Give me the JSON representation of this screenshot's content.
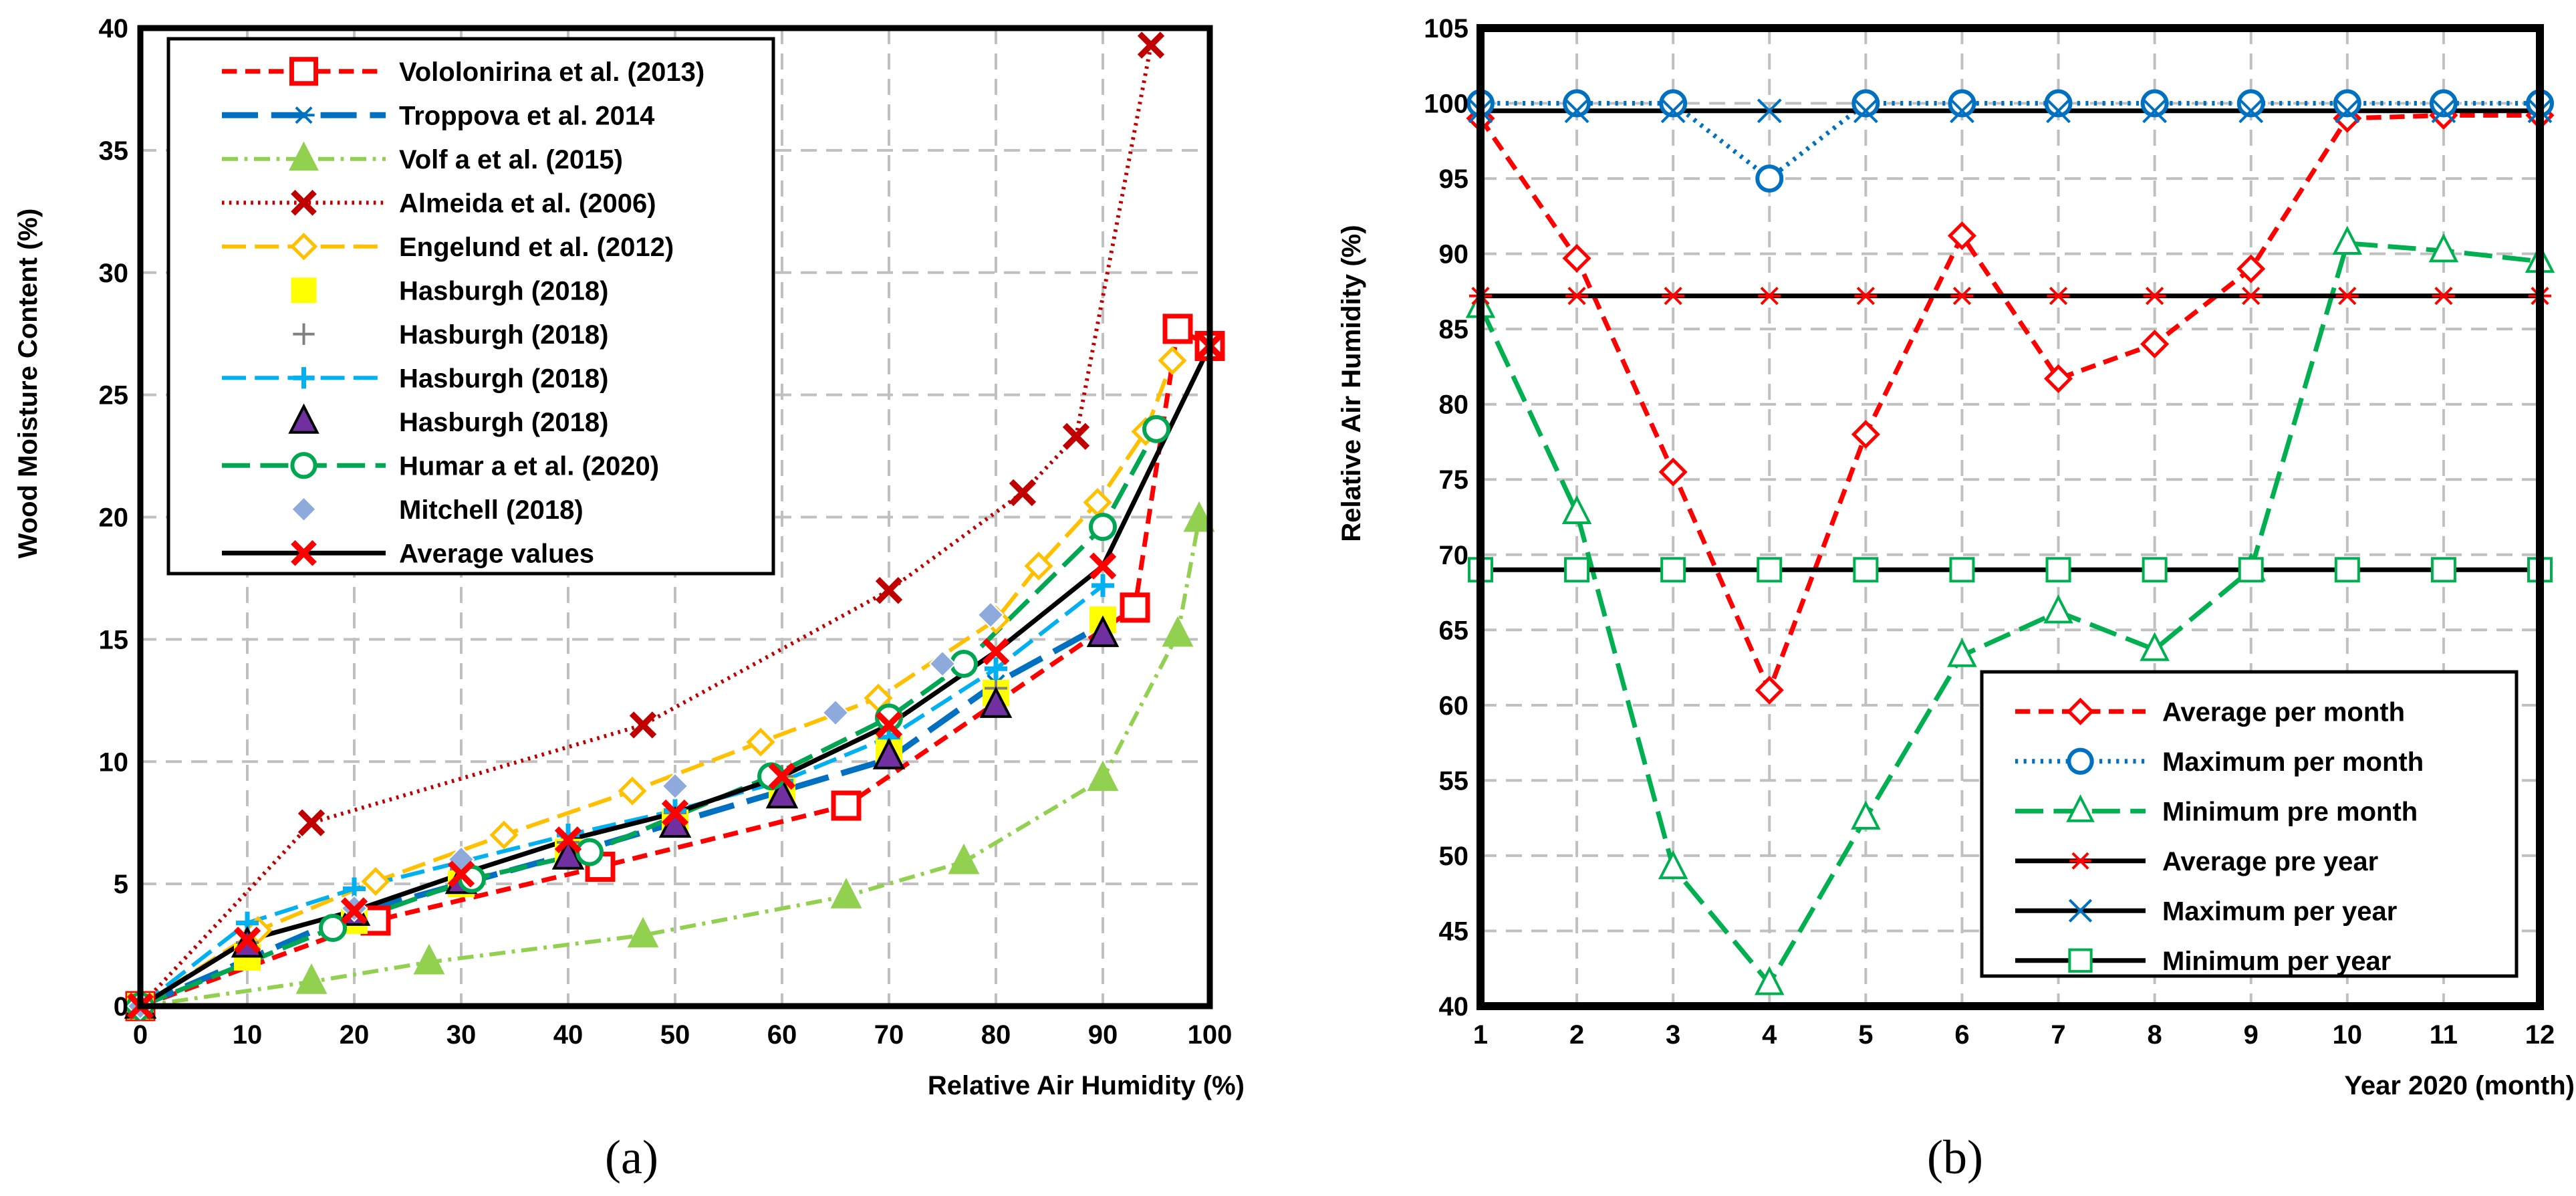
{
  "figure": {
    "panel_a_label": "(a)",
    "panel_b_label": "(b)"
  },
  "chart_data": [
    {
      "id": "a",
      "type": "line",
      "title": "",
      "xlabel": "Relative Air Humidity (%)",
      "ylabel": "Wood Moisture Content (%)",
      "xlim": [
        0,
        100
      ],
      "ylim": [
        0,
        40
      ],
      "xticks": [
        0,
        10,
        20,
        30,
        40,
        50,
        60,
        70,
        80,
        90,
        100
      ],
      "yticks": [
        0,
        5,
        10,
        15,
        20,
        25,
        30,
        35,
        40
      ],
      "grid": true,
      "legend_position": "top-left",
      "series": [
        {
          "name": "Vololonirina et al. (2013)",
          "color": "#ff0000",
          "dash": "dash",
          "width": 7,
          "marker": "square-open",
          "x": [
            0,
            22,
            43,
            66,
            93,
            97,
            100
          ],
          "y": [
            0,
            3.5,
            5.7,
            8.2,
            16.3,
            27.7,
            27
          ]
        },
        {
          "name": "Troppova et al. 2014",
          "color": "#0070c0",
          "dash": "longdash",
          "width": 9,
          "marker": "asterisk",
          "x": [
            0,
            20,
            40,
            60,
            70,
            80,
            90
          ],
          "y": [
            0,
            3.8,
            6.2,
            8.8,
            10.1,
            13.2,
            15.6
          ]
        },
        {
          "name": "Volf a et al. (2015)",
          "color": "#92d050",
          "dash": "dashdot",
          "width": 6,
          "marker": "triangle-filled",
          "x": [
            0,
            16,
            27,
            47,
            66,
            77,
            90,
            97,
            99
          ],
          "y": [
            0,
            1.0,
            1.8,
            2.9,
            4.5,
            5.9,
            9.3,
            15.2,
            19.9
          ]
        },
        {
          "name": "Almeida et al. (2006)",
          "color": "#c00000",
          "dash": "dot",
          "width": 6,
          "marker": "x",
          "x": [
            0,
            16,
            47,
            70,
            82.5,
            87.5,
            94.5
          ],
          "y": [
            0,
            7.5,
            11.5,
            17.0,
            21.0,
            23.3,
            39.3
          ]
        },
        {
          "name": "Engelund et al. (2012)",
          "color": "#ffc000",
          "dash": "longdash",
          "width": 6,
          "marker": "diamond-open",
          "x": [
            0,
            11,
            22,
            34,
            46,
            58,
            69,
            80,
            84,
            89.5,
            94,
            96.5
          ],
          "y": [
            0,
            3.1,
            5.1,
            7.0,
            8.8,
            10.8,
            12.6,
            15.8,
            18.0,
            20.6,
            23.5,
            26.4
          ]
        },
        {
          "name": "Hasburgh (2018)",
          "color": "#ffff00",
          "dash": "none",
          "width": 0,
          "marker": "square-filled",
          "x": [
            0,
            10,
            20,
            30,
            40,
            50,
            60,
            70,
            80,
            90
          ],
          "y": [
            0,
            2.0,
            3.5,
            5.0,
            6.3,
            7.5,
            8.8,
            10.5,
            12.8,
            15.8
          ]
        },
        {
          "name": "Hasburgh (2018)",
          "color": "#808080",
          "dash": "none",
          "width": 0,
          "marker": "plus-gray",
          "x": [
            0,
            10,
            20,
            30,
            40,
            50,
            60,
            70,
            80
          ],
          "y": [
            0,
            2.6,
            4.0,
            5.6,
            6.7,
            7.9,
            9.4,
            11.0,
            13.0
          ]
        },
        {
          "name": "Hasburgh (2018)",
          "color": "#00b0f0",
          "dash": "longdash",
          "width": 6,
          "marker": "plus",
          "x": [
            0,
            10,
            20,
            30,
            40,
            50,
            60,
            70,
            80,
            90
          ],
          "y": [
            0,
            3.4,
            4.8,
            5.9,
            7.0,
            8.0,
            9.2,
            11.0,
            13.8,
            17.2
          ]
        },
        {
          "name": "Hasburgh (2018)",
          "color": "#7030a0",
          "dash": "none",
          "width": 0,
          "marker": "triangle-dark",
          "x": [
            0,
            10,
            20,
            30,
            40,
            50,
            60,
            70,
            80,
            90
          ],
          "y": [
            0,
            2.5,
            3.8,
            5.1,
            6.1,
            7.4,
            8.6,
            10.2,
            12.3,
            15.2
          ]
        },
        {
          "name": "Humar a et al. (2020)",
          "color": "#00a651",
          "dash": "longdash",
          "width": 7,
          "marker": "circle-open",
          "x": [
            0,
            18,
            31,
            42,
            59,
            70,
            77,
            90,
            95
          ],
          "y": [
            0,
            3.2,
            5.2,
            6.3,
            9.4,
            11.8,
            14.0,
            19.6,
            23.6
          ]
        },
        {
          "name": "Mitchell (2018)",
          "color": "#8ea9db",
          "dash": "none",
          "width": 0,
          "marker": "diamond-filled",
          "x": [
            0,
            20,
            30,
            50,
            65,
            75,
            79.5
          ],
          "y": [
            0,
            4.0,
            6.0,
            9.0,
            12.0,
            14.0,
            16.0
          ]
        },
        {
          "name": "Average values",
          "color": "#000000",
          "dash": "solid",
          "width": 7,
          "marker": "x-red",
          "x": [
            0,
            10,
            20,
            30,
            40,
            50,
            60,
            70,
            80,
            90,
            100
          ],
          "y": [
            0,
            2.7,
            3.9,
            5.4,
            6.8,
            7.9,
            9.4,
            11.5,
            14.5,
            18.0,
            27.0
          ]
        }
      ]
    },
    {
      "id": "b",
      "type": "line",
      "title": "",
      "xlabel": "Year 2020 (month)",
      "ylabel": "Relative Air Humidity (%)",
      "xlim": [
        1,
        12
      ],
      "ylim": [
        40,
        105
      ],
      "xticks": [
        1,
        2,
        3,
        4,
        5,
        6,
        7,
        8,
        9,
        10,
        11,
        12
      ],
      "yticks": [
        40,
        45,
        50,
        55,
        60,
        65,
        70,
        75,
        80,
        85,
        90,
        95,
        100,
        105
      ],
      "grid": true,
      "legend_position": "bottom-right",
      "series": [
        {
          "name": "Average per month",
          "color": "#ff0000",
          "dash": "dash",
          "width": 7,
          "marker": "diamond-open",
          "x": [
            1,
            2,
            3,
            4,
            5,
            6,
            7,
            8,
            9,
            10,
            11,
            12
          ],
          "y": [
            99.0,
            89.7,
            75.5,
            61.0,
            78.0,
            91.2,
            81.7,
            84.0,
            89.0,
            99.0,
            99.2,
            99.2
          ]
        },
        {
          "name": "Maximum per month",
          "color": "#0070c0",
          "dash": "dot",
          "width": 7,
          "marker": "circle-open",
          "x": [
            1,
            2,
            3,
            4,
            5,
            6,
            7,
            8,
            9,
            10,
            11,
            12
          ],
          "y": [
            100,
            100,
            100,
            95,
            100,
            100,
            100,
            100,
            100,
            100,
            100,
            100
          ]
        },
        {
          "name": "Minimum pre month",
          "color": "#00b050",
          "dash": "longdash",
          "width": 7,
          "marker": "triangle-open",
          "x": [
            1,
            2,
            3,
            4,
            5,
            6,
            7,
            8,
            9,
            10,
            11,
            12
          ],
          "y": [
            86.5,
            72.8,
            49.2,
            41.5,
            52.5,
            63.3,
            66.2,
            63.7,
            69.0,
            90.7,
            90.2,
            89.5
          ]
        },
        {
          "name": "Average pre year",
          "color": "#000000",
          "dash": "solid",
          "width": 7,
          "marker": "asterisk-red",
          "x": [
            1,
            2,
            3,
            4,
            5,
            6,
            7,
            8,
            9,
            10,
            11,
            12
          ],
          "y": [
            87.2,
            87.2,
            87.2,
            87.2,
            87.2,
            87.2,
            87.2,
            87.2,
            87.2,
            87.2,
            87.2,
            87.2
          ]
        },
        {
          "name": "Maximum per year",
          "color": "#000000",
          "dash": "solid",
          "width": 7,
          "marker": "x-blue",
          "x": [
            1,
            2,
            3,
            4,
            5,
            6,
            7,
            8,
            9,
            10,
            11,
            12
          ],
          "y": [
            99.5,
            99.5,
            99.5,
            99.5,
            99.5,
            99.5,
            99.5,
            99.5,
            99.5,
            99.5,
            99.5,
            99.5
          ]
        },
        {
          "name": "Minimum per year",
          "color": "#000000",
          "dash": "solid",
          "width": 7,
          "marker": "square-green",
          "x": [
            1,
            2,
            3,
            4,
            5,
            6,
            7,
            8,
            9,
            10,
            11,
            12
          ],
          "y": [
            69,
            69,
            69,
            69,
            69,
            69,
            69,
            69,
            69,
            69,
            69,
            69
          ]
        }
      ]
    }
  ]
}
